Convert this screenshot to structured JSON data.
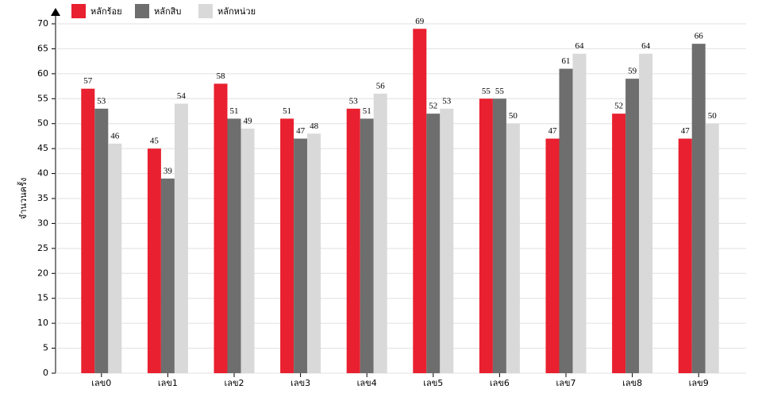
{
  "chart_data": {
    "type": "bar",
    "y_label": "จำนวนครั้ง",
    "categories": [
      "เลข0",
      "เลข1",
      "เลข2",
      "เลข3",
      "เลข4",
      "เลข5",
      "เลข6",
      "เลข7",
      "เลข8",
      "เลข9"
    ],
    "series": [
      {
        "name": "หลักร้อย",
        "color": "#e8202f",
        "values": [
          57,
          45,
          58,
          51,
          53,
          69,
          55,
          47,
          52,
          47
        ]
      },
      {
        "name": "หลักสิบ",
        "color": "#6e6e6e",
        "values": [
          53,
          39,
          51,
          47,
          51,
          52,
          55,
          61,
          59,
          66
        ]
      },
      {
        "name": "หลักหน่วย",
        "color": "#d9d9d9",
        "values": [
          46,
          54,
          49,
          48,
          56,
          53,
          50,
          64,
          64,
          50
        ]
      }
    ],
    "ylim": [
      0,
      70
    ],
    "yticks": [
      0,
      5,
      10,
      15,
      20,
      25,
      30,
      35,
      40,
      45,
      50,
      55,
      60,
      65,
      70
    ],
    "grid": true
  }
}
